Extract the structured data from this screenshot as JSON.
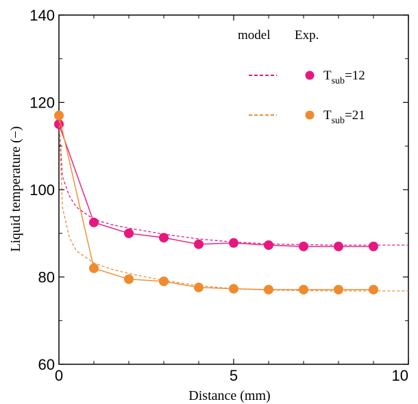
{
  "chart_data": {
    "type": "line",
    "xlabel": "Distance (mm)",
    "ylabel": "Liquid temperature (−)",
    "xlim": [
      0,
      10
    ],
    "ylim": [
      60,
      140
    ],
    "xticks": [
      "0",
      "5",
      "10"
    ],
    "yticks": [
      "60",
      "80",
      "100",
      "120",
      "140"
    ],
    "grid": false,
    "legend": {
      "position": "top-right",
      "header_model": "model",
      "header_exp": "Exp.",
      "entries": [
        {
          "main": "T",
          "sub": "sub",
          "value": "=12"
        },
        {
          "main": "T",
          "sub": "sub",
          "value": "=21"
        }
      ]
    },
    "series": [
      {
        "legend": "Tsub=12",
        "kind": "experiment",
        "color": "#e8177f",
        "x": [
          0,
          1,
          2,
          3,
          4,
          5,
          6,
          7,
          8,
          9
        ],
        "y": [
          115,
          92.5,
          90,
          89,
          87.5,
          87.8,
          87.3,
          87,
          87,
          87
        ]
      },
      {
        "legend": "Tsub=21",
        "kind": "experiment",
        "color": "#f08a2c",
        "x": [
          0,
          1,
          2,
          3,
          4,
          5,
          6,
          7,
          8,
          9
        ],
        "y": [
          117,
          82,
          79.5,
          79,
          77.6,
          77.3,
          77.1,
          77.1,
          77.1,
          77.1
        ]
      },
      {
        "legend": "Tsub=12",
        "kind": "model",
        "color": "#e8177f",
        "x": [
          0,
          0.1,
          0.3,
          0.5,
          1,
          1.5,
          2,
          3,
          4,
          5,
          6,
          7,
          8,
          10
        ],
        "y": [
          116,
          103,
          98.5,
          96,
          93.2,
          92,
          91.2,
          89.8,
          88.7,
          88,
          87.6,
          87.4,
          87.3,
          87.3
        ]
      },
      {
        "legend": "Tsub=21",
        "kind": "model",
        "color": "#f08a2c",
        "x": [
          0,
          0.1,
          0.3,
          0.5,
          1,
          1.5,
          2,
          3,
          4,
          5,
          6,
          7,
          8,
          10
        ],
        "y": [
          117,
          96,
          89,
          86,
          83.2,
          81.8,
          80.8,
          79.2,
          78,
          77.3,
          77,
          76.9,
          76.8,
          76.8
        ]
      }
    ]
  }
}
